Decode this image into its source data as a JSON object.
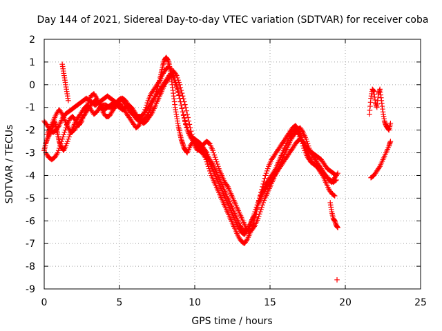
{
  "chart_data": {
    "type": "scatter",
    "title": "Day 144 of 2021, Sidereal Day-to-day VTEC variation (SDTVAR) for receiver coba",
    "xlabel": "GPS time / hours",
    "ylabel": "SDTVAR / TECUs",
    "xlim": [
      0,
      25
    ],
    "ylim": [
      -9,
      2
    ],
    "xticks": [
      "0",
      "5",
      "10",
      "15",
      "20",
      "25"
    ],
    "yticks": [
      "-9",
      "-8",
      "-7",
      "-6",
      "-5",
      "-4",
      "-3",
      "-2",
      "-1",
      "0",
      "1",
      "2"
    ],
    "grid": true,
    "marker": "plus",
    "color": "#ff0000",
    "series": [
      {
        "x": [
          0.0,
          0.1,
          0.2,
          0.35,
          0.5,
          0.6,
          0.7,
          0.8,
          0.9,
          1.0,
          1.1,
          1.2,
          1.3,
          1.5,
          1.7,
          1.9,
          2.1,
          2.3,
          2.5,
          2.7,
          2.9,
          3.1,
          3.3,
          3.5,
          3.7,
          3.9,
          4.1,
          4.3,
          4.5,
          4.7,
          4.9,
          5.1,
          5.3,
          5.5,
          5.7,
          5.9,
          6.1,
          6.3,
          6.5,
          6.7,
          6.9,
          7.1,
          7.3,
          7.5,
          7.7,
          7.8,
          7.9,
          8.0,
          8.1,
          8.2,
          8.3,
          8.4,
          8.5,
          8.6,
          8.7,
          8.8,
          8.9,
          9.0,
          9.1,
          9.2,
          9.3,
          9.4,
          9.5,
          9.7,
          9.9,
          10.1,
          10.3,
          10.5,
          10.7,
          10.9,
          11.1,
          11.3,
          11.5,
          11.7,
          11.9,
          12.1,
          12.3,
          12.5,
          12.7,
          12.9,
          13.1,
          13.3,
          13.5,
          13.7,
          13.9,
          14.1,
          14.3,
          14.5,
          14.7,
          14.9,
          15.1,
          15.3,
          15.5,
          15.7,
          15.9,
          16.1,
          16.3,
          16.5,
          16.7,
          16.9,
          17.1,
          17.3,
          17.5,
          17.7,
          17.9,
          18.1,
          18.3,
          18.5,
          18.7,
          18.9,
          19.1,
          19.3,
          19.5
        ],
        "y": [
          -2.9,
          -2.6,
          -2.4,
          -2.2,
          -2.0,
          -1.8,
          -1.6,
          -1.9,
          -2.2,
          -2.5,
          -2.7,
          -2.8,
          -2.9,
          -2.6,
          -2.2,
          -1.9,
          -1.6,
          -1.4,
          -1.2,
          -1.0,
          -0.9,
          -1.1,
          -1.3,
          -1.2,
          -1.0,
          -0.9,
          -0.9,
          -1.0,
          -1.0,
          -0.9,
          -0.7,
          -0.6,
          -0.8,
          -1.0,
          -1.2,
          -1.3,
          -1.5,
          -1.6,
          -1.6,
          -1.5,
          -1.3,
          -1.0,
          -0.6,
          -0.2,
          0.3,
          0.6,
          0.9,
          1.1,
          1.2,
          1.1,
          0.9,
          0.5,
          0.0,
          -0.5,
          -1.0,
          -1.4,
          -1.8,
          -2.1,
          -2.4,
          -2.6,
          -2.8,
          -2.9,
          -3.0,
          -2.7,
          -2.5,
          -2.7,
          -2.9,
          -3.0,
          -3.2,
          -3.6,
          -4.0,
          -4.3,
          -4.6,
          -4.9,
          -5.2,
          -5.5,
          -5.8,
          -6.1,
          -6.4,
          -6.7,
          -6.9,
          -7.0,
          -6.8,
          -6.5,
          -6.1,
          -5.6,
          -5.0,
          -4.5,
          -4.0,
          -3.6,
          -3.3,
          -3.1,
          -2.9,
          -2.7,
          -2.5,
          -2.3,
          -2.1,
          -1.9,
          -1.8,
          -2.0,
          -2.3,
          -2.7,
          -3.0,
          -3.3,
          -3.5,
          -3.6,
          -3.7,
          -3.9,
          -4.0,
          -4.2,
          -4.3,
          -4.1,
          -3.9
        ]
      },
      {
        "x": [
          0.1,
          0.3,
          0.5,
          0.7,
          0.9,
          1.1,
          1.3,
          1.5,
          1.7,
          1.9,
          2.1,
          2.3,
          2.5,
          2.7,
          2.9,
          3.1,
          3.3,
          3.5,
          3.7,
          3.9,
          4.1,
          4.3,
          4.5,
          4.7,
          4.9,
          5.1,
          5.3,
          5.5,
          5.7,
          5.9,
          6.1,
          6.3,
          6.5,
          6.7,
          6.9,
          7.1,
          7.3,
          7.5,
          7.7,
          7.9,
          8.1,
          8.3,
          8.5,
          8.7,
          8.9,
          9.1,
          9.3,
          9.5,
          9.7,
          9.9,
          10.1,
          10.3,
          10.5,
          10.7,
          10.9,
          11.1,
          11.3,
          11.5,
          11.7,
          11.9,
          12.1,
          12.3,
          12.5,
          12.7,
          12.9,
          13.1,
          13.3,
          13.5,
          13.7,
          13.9,
          14.1,
          14.3,
          14.5,
          14.7,
          14.9,
          15.1,
          15.3,
          15.5,
          15.7,
          15.9,
          16.1,
          16.3,
          16.5,
          16.7,
          16.9,
          17.1,
          17.3,
          17.5,
          17.7,
          17.9,
          18.1,
          18.3,
          18.5,
          18.7,
          18.9,
          19.1,
          19.3
        ],
        "y": [
          -3.0,
          -3.2,
          -3.3,
          -3.2,
          -3.0,
          -2.6,
          -2.2,
          -1.8,
          -1.5,
          -1.4,
          -1.6,
          -1.8,
          -1.6,
          -1.2,
          -0.8,
          -0.5,
          -0.4,
          -0.6,
          -0.9,
          -1.2,
          -1.4,
          -1.4,
          -1.2,
          -1.0,
          -0.8,
          -0.9,
          -1.1,
          -1.3,
          -1.5,
          -1.7,
          -1.9,
          -1.8,
          -1.5,
          -1.1,
          -0.7,
          -0.4,
          -0.2,
          0.0,
          0.2,
          0.5,
          0.7,
          0.8,
          0.6,
          0.2,
          -0.3,
          -0.9,
          -1.5,
          -2.0,
          -2.3,
          -2.5,
          -2.6,
          -2.7,
          -2.9,
          -3.1,
          -3.3,
          -3.6,
          -3.9,
          -4.2,
          -4.5,
          -4.8,
          -5.1,
          -5.4,
          -5.7,
          -6.0,
          -6.3,
          -6.5,
          -6.6,
          -6.4,
          -6.1,
          -5.8,
          -5.4,
          -5.0,
          -4.7,
          -4.4,
          -4.2,
          -4.0,
          -3.8,
          -3.5,
          -3.2,
          -2.9,
          -2.6,
          -2.3,
          -2.1,
          -2.0,
          -2.2,
          -2.5,
          -2.9,
          -3.2,
          -3.4,
          -3.5,
          -3.6,
          -3.8,
          -4.0,
          -4.3,
          -4.6,
          -4.8,
          -4.9
        ]
      },
      {
        "x": [
          0.0,
          0.2,
          0.4,
          0.6,
          0.8,
          1.0,
          1.2,
          1.4,
          1.6,
          1.8,
          2.0,
          2.2,
          2.4,
          2.6,
          2.8,
          3.0,
          3.2,
          3.4,
          3.6,
          3.8,
          4.0,
          4.2,
          4.4,
          4.6,
          4.8,
          5.0,
          5.2,
          5.4,
          5.6,
          5.8,
          6.0,
          6.2,
          6.4,
          6.6,
          6.8,
          7.0,
          7.2,
          7.4,
          7.6,
          7.8,
          8.0,
          8.2,
          8.4,
          8.6,
          8.8,
          9.0,
          9.2,
          9.4,
          9.6,
          9.8,
          10.0,
          10.2,
          10.4,
          10.6,
          10.8,
          11.0,
          11.2,
          11.4,
          11.6,
          11.8,
          12.0,
          12.2,
          12.4,
          12.6,
          12.8,
          13.0,
          13.2,
          13.4,
          13.6,
          13.8,
          14.0,
          14.2,
          14.4,
          14.6,
          14.8,
          15.0,
          15.2,
          15.4,
          15.6,
          15.8,
          16.0,
          16.2,
          16.4,
          16.6,
          16.8,
          17.0,
          17.2,
          17.4,
          17.6,
          17.8,
          18.0,
          18.2,
          18.4,
          18.6,
          18.8,
          19.0,
          19.2,
          19.4
        ],
        "y": [
          -1.6,
          -1.8,
          -2.0,
          -2.1,
          -2.0,
          -1.8,
          -1.5,
          -1.3,
          -1.2,
          -1.1,
          -1.0,
          -0.9,
          -0.8,
          -0.7,
          -0.6,
          -0.7,
          -0.8,
          -0.9,
          -0.8,
          -0.7,
          -0.6,
          -0.5,
          -0.6,
          -0.7,
          -0.8,
          -0.7,
          -0.6,
          -0.7,
          -0.9,
          -1.1,
          -1.3,
          -1.4,
          -1.4,
          -1.3,
          -1.1,
          -0.9,
          -0.7,
          -0.5,
          -0.3,
          -0.1,
          0.1,
          0.3,
          0.5,
          0.3,
          -0.1,
          -0.6,
          -1.2,
          -1.7,
          -2.1,
          -2.3,
          -2.4,
          -2.5,
          -2.6,
          -2.8,
          -3.0,
          -3.3,
          -3.5,
          -3.8,
          -4.1,
          -4.4,
          -4.7,
          -5.0,
          -5.3,
          -5.6,
          -5.9,
          -6.2,
          -6.4,
          -6.5,
          -6.3,
          -6.0,
          -5.7,
          -5.3,
          -5.0,
          -4.7,
          -4.5,
          -4.3,
          -4.1,
          -3.9,
          -3.7,
          -3.5,
          -3.3,
          -3.1,
          -2.9,
          -2.7,
          -2.5,
          -2.4,
          -2.5,
          -2.7,
          -2.9,
          -3.0,
          -3.1,
          -3.2,
          -3.3,
          -3.5,
          -3.7,
          -3.8,
          -3.9,
          -4.0
        ]
      },
      {
        "x": [
          0.2,
          0.4,
          0.6,
          0.8,
          1.0,
          1.2,
          1.4,
          1.6,
          1.8,
          2.0,
          2.2,
          2.4,
          2.6,
          2.8,
          3.0,
          3.2,
          3.4,
          3.6,
          3.8,
          4.0,
          4.2,
          4.4,
          4.6,
          4.8,
          5.0,
          5.2,
          5.4,
          5.6,
          5.8,
          6.0,
          6.2,
          6.4,
          6.6,
          6.8,
          7.0,
          7.2,
          7.4,
          7.6,
          7.8,
          8.0,
          8.2,
          8.4,
          8.6,
          8.8,
          9.0,
          9.2,
          9.4,
          9.6,
          9.8,
          10.0,
          10.2,
          10.4,
          10.6,
          10.8,
          11.0,
          11.2,
          11.4,
          11.6,
          11.8,
          12.0,
          12.2,
          12.4,
          12.6,
          12.8,
          13.0,
          13.2,
          13.4,
          13.6,
          13.8,
          14.0,
          14.2,
          14.4,
          14.6,
          14.8,
          15.0,
          15.2,
          15.4,
          15.6,
          15.8,
          16.0,
          16.2,
          16.4,
          16.6,
          16.8,
          17.0,
          17.2,
          17.4,
          17.6,
          17.8,
          18.0,
          18.2,
          18.4,
          18.6,
          18.8,
          19.0,
          19.2,
          19.4
        ],
        "y": [
          -2.2,
          -1.9,
          -1.6,
          -1.3,
          -1.1,
          -1.3,
          -1.6,
          -1.9,
          -2.1,
          -2.0,
          -1.8,
          -1.6,
          -1.4,
          -1.2,
          -1.0,
          -0.8,
          -0.7,
          -0.8,
          -1.0,
          -1.1,
          -1.0,
          -0.9,
          -0.8,
          -0.9,
          -1.0,
          -1.1,
          -1.0,
          -0.9,
          -1.0,
          -1.2,
          -1.4,
          -1.6,
          -1.7,
          -1.6,
          -1.4,
          -1.2,
          -0.9,
          -0.6,
          -0.3,
          0.0,
          0.2,
          0.4,
          0.6,
          0.4,
          0.0,
          -0.5,
          -1.0,
          -1.6,
          -2.2,
          -2.7,
          -2.9,
          -2.8,
          -2.6,
          -2.5,
          -2.6,
          -2.9,
          -3.3,
          -3.7,
          -4.0,
          -4.3,
          -4.5,
          -4.8,
          -5.1,
          -5.4,
          -5.7,
          -6.0,
          -6.3,
          -6.5,
          -6.4,
          -6.2,
          -5.9,
          -5.5,
          -5.1,
          -4.8,
          -4.5,
          -4.2,
          -3.9,
          -3.6,
          -3.3,
          -3.0,
          -2.7,
          -2.4,
          -2.2,
          -2.0,
          -1.9,
          -2.1,
          -2.4,
          -2.8,
          -3.1,
          -3.3,
          -3.5,
          -3.7,
          -3.9,
          -4.1,
          -4.2,
          -4.3,
          -4.2
        ]
      },
      {
        "x": [
          1.2,
          1.3,
          1.4,
          1.5,
          1.6
        ],
        "y": [
          0.9,
          0.5,
          0.1,
          -0.3,
          -0.7
        ]
      },
      {
        "x": [
          19.0,
          19.1,
          19.2,
          19.3,
          19.4,
          19.5
        ],
        "y": [
          -5.2,
          -5.6,
          -5.9,
          -6.0,
          -6.2,
          -6.3
        ]
      },
      {
        "x": [
          19.45
        ],
        "y": [
          -8.6
        ]
      },
      {
        "x": [
          21.6,
          21.7,
          21.8,
          21.9,
          22.0,
          22.1,
          22.2,
          22.3,
          22.4,
          22.5,
          22.6,
          22.7,
          22.8,
          22.9,
          23.0
        ],
        "y": [
          -1.3,
          -0.6,
          -0.2,
          -0.3,
          -0.8,
          -1.0,
          -0.4,
          -0.2,
          -0.7,
          -1.2,
          -1.6,
          -1.8,
          -1.9,
          -2.0,
          -1.7
        ]
      },
      {
        "x": [
          21.7,
          21.9,
          22.1,
          22.3,
          22.5,
          22.7,
          22.9,
          23.0
        ],
        "y": [
          -4.1,
          -4.0,
          -3.8,
          -3.6,
          -3.3,
          -3.0,
          -2.7,
          -2.5
        ]
      }
    ]
  }
}
